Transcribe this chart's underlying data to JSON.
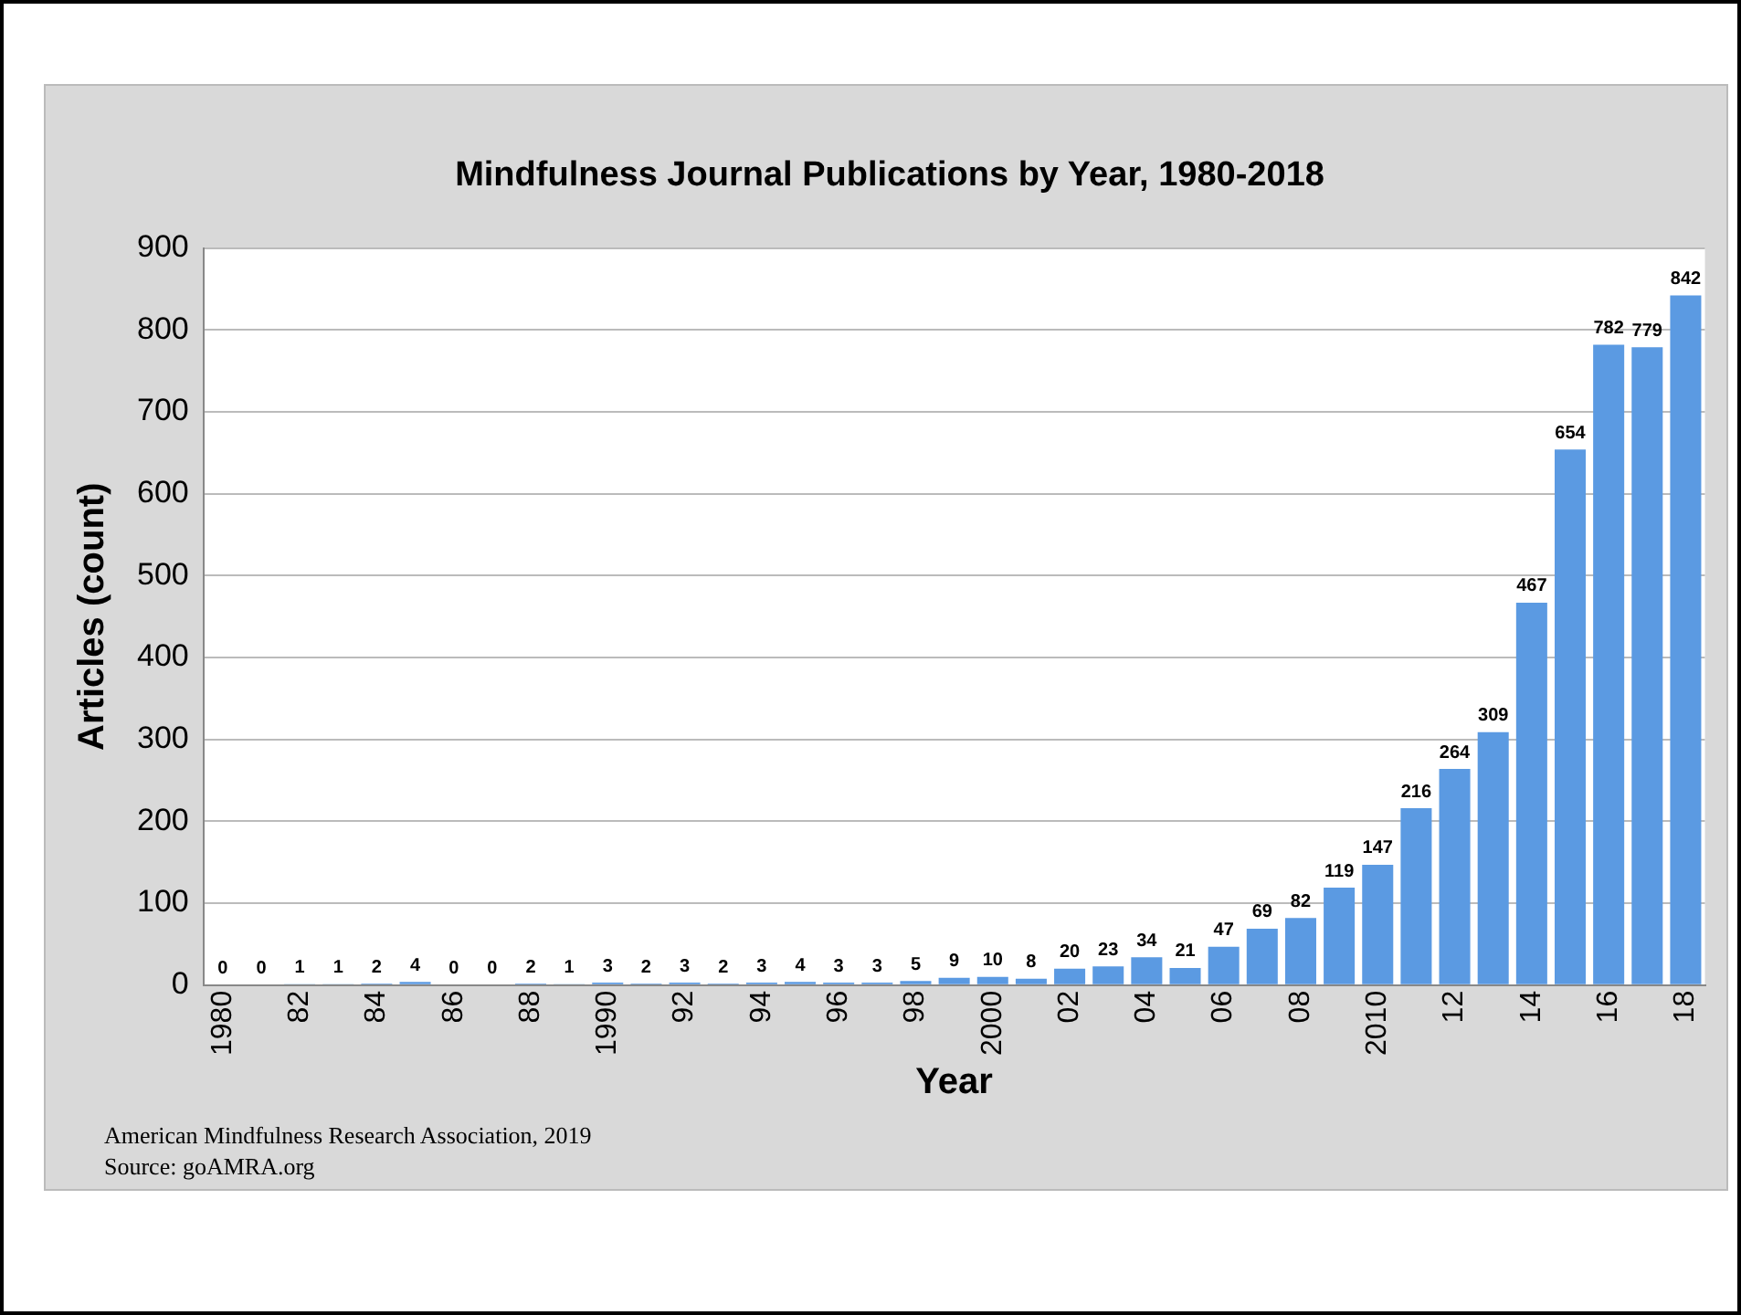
{
  "chart_data": {
    "type": "bar",
    "title": "Mindfulness Journal Publications by Year, 1980-2018",
    "xlabel": "Year",
    "ylabel": "Articles (count)",
    "categories": [
      "1980",
      null,
      "82",
      null,
      "84",
      null,
      "86",
      null,
      "88",
      null,
      "1990",
      null,
      "92",
      null,
      "94",
      null,
      "96",
      null,
      "98",
      null,
      "2000",
      null,
      "02",
      null,
      "04",
      null,
      "06",
      null,
      "08",
      null,
      "2010",
      null,
      "12",
      null,
      "14",
      null,
      "16",
      null,
      "18"
    ],
    "values": [
      0,
      0,
      1,
      1,
      2,
      4,
      0,
      0,
      2,
      1,
      3,
      2,
      3,
      2,
      3,
      4,
      3,
      3,
      5,
      9,
      10,
      8,
      20,
      23,
      34,
      21,
      47,
      69,
      82,
      119,
      147,
      216,
      264,
      309,
      467,
      654,
      782,
      779,
      842
    ],
    "color": "#5b9ae2",
    "ylim": [
      0,
      900
    ],
    "yticks": [
      0,
      100,
      200,
      300,
      400,
      500,
      600,
      700,
      800,
      900
    ],
    "grid": "y",
    "data_labels": true,
    "legend": false,
    "annotations": [
      "American Mindfulness Research Association, 2019",
      "Source: goAMRA.org"
    ]
  }
}
